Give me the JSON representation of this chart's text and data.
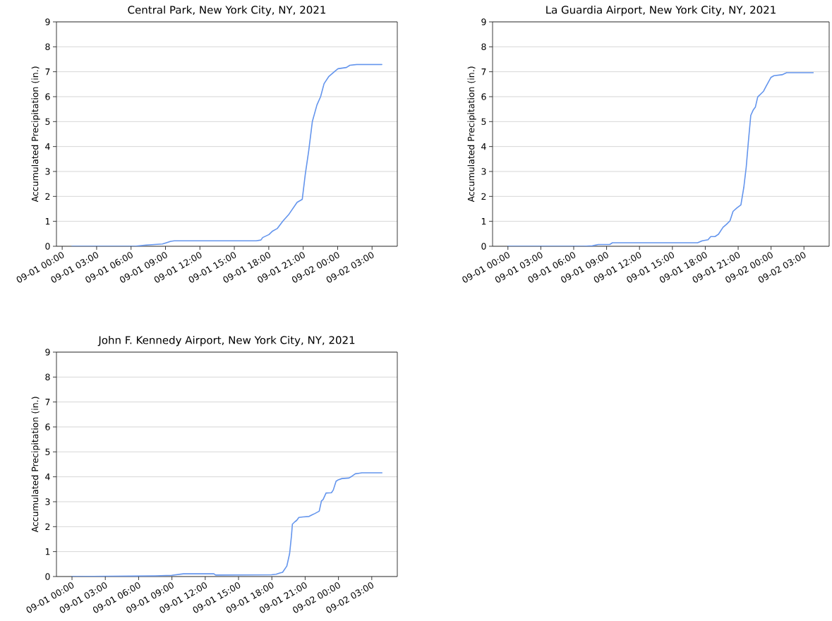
{
  "chart_data": [
    {
      "type": "line",
      "title": "Central Park, New York City, NY, 2021",
      "ylabel": "Accumulated Precipitation (in.)",
      "color": "#6495ed",
      "grid": "y",
      "x": [
        "2021-09-01T00:51",
        "2021-09-01T06:17",
        "2021-09-01T07:19",
        "2021-09-01T08:44",
        "2021-09-01T08:59",
        "2021-09-01T09:27",
        "2021-09-01T09:46",
        "2021-09-01T16:54",
        "2021-09-01T17:19",
        "2021-09-01T17:28",
        "2021-09-01T18:01",
        "2021-09-01T18:20",
        "2021-09-01T18:44",
        "2021-09-01T19:14",
        "2021-09-01T19:46",
        "2021-09-01T20:28",
        "2021-09-01T20:55",
        "2021-09-01T21:11",
        "2021-09-01T21:29",
        "2021-09-01T21:48",
        "2021-09-01T22:12",
        "2021-09-01T22:31",
        "2021-09-01T22:49",
        "2021-09-01T23:13",
        "2021-09-01T23:44",
        "2021-09-02T00:02",
        "2021-09-02T00:46",
        "2021-09-02T01:04",
        "2021-09-02T01:40",
        "2021-09-02T03:51"
      ],
      "values": [
        0,
        0,
        0.05,
        0.09,
        0.13,
        0.2,
        0.22,
        0.22,
        0.25,
        0.35,
        0.47,
        0.61,
        0.71,
        1.01,
        1.29,
        1.76,
        1.88,
        2.89,
        3.84,
        5.01,
        5.67,
        6.0,
        6.52,
        6.8,
        7.01,
        7.12,
        7.17,
        7.26,
        7.29,
        7.29
      ],
      "xlim": [
        "2021-08-31T23:30",
        "2021-09-02T05:12"
      ],
      "ylim": [
        0,
        9
      ],
      "xticks": [
        {
          "value": "2021-09-01T00:00",
          "label": "09-01 00:00"
        },
        {
          "value": "2021-09-01T03:00",
          "label": "09-01 03:00"
        },
        {
          "value": "2021-09-01T06:00",
          "label": "09-01 06:00"
        },
        {
          "value": "2021-09-01T09:00",
          "label": "09-01 09:00"
        },
        {
          "value": "2021-09-01T12:00",
          "label": "09-01 12:00"
        },
        {
          "value": "2021-09-01T15:00",
          "label": "09-01 15:00"
        },
        {
          "value": "2021-09-01T18:00",
          "label": "09-01 18:00"
        },
        {
          "value": "2021-09-01T21:00",
          "label": "09-01 21:00"
        },
        {
          "value": "2021-09-02T00:00",
          "label": "09-02 00:00"
        },
        {
          "value": "2021-09-02T03:00",
          "label": "09-02 03:00"
        }
      ],
      "yticks": [
        0,
        1,
        2,
        3,
        4,
        5,
        6,
        7,
        8,
        9
      ]
    },
    {
      "type": "line",
      "title": "La Guardia Airport, New York City, NY, 2021",
      "ylabel": "Accumulated Precipitation (in.)",
      "color": "#6495ed",
      "grid": "y",
      "x": [
        "2021-09-01T00:00",
        "2021-09-01T06:52",
        "2021-09-01T07:42",
        "2021-09-01T08:14",
        "2021-09-01T09:17",
        "2021-09-01T09:32",
        "2021-09-01T17:18",
        "2021-09-01T17:43",
        "2021-09-01T18:15",
        "2021-09-01T18:30",
        "2021-09-01T18:53",
        "2021-09-01T19:12",
        "2021-09-01T19:37",
        "2021-09-01T19:56",
        "2021-09-01T20:15",
        "2021-09-01T20:32",
        "2021-09-01T20:53",
        "2021-09-01T21:15",
        "2021-09-01T21:31",
        "2021-09-01T21:44",
        "2021-09-01T21:56",
        "2021-09-01T22:09",
        "2021-09-01T22:22",
        "2021-09-01T22:34",
        "2021-09-01T22:47",
        "2021-09-01T23:19",
        "2021-09-01T23:31",
        "2021-09-01T23:59",
        "2021-09-02T00:16",
        "2021-09-02T01:00",
        "2021-09-02T01:25",
        "2021-09-02T03:51"
      ],
      "values": [
        0,
        0,
        0.02,
        0.07,
        0.07,
        0.14,
        0.14,
        0.22,
        0.26,
        0.39,
        0.39,
        0.48,
        0.76,
        0.88,
        1.02,
        1.4,
        1.54,
        1.66,
        2.37,
        3.17,
        4.21,
        5.25,
        5.46,
        5.58,
        5.99,
        6.22,
        6.39,
        6.77,
        6.84,
        6.88,
        6.96,
        6.96
      ],
      "xlim": [
        "2021-08-31T22:36",
        "2021-09-02T05:18"
      ],
      "ylim": [
        0,
        9
      ],
      "xticks": [
        {
          "value": "2021-09-01T00:00",
          "label": "09-01 00:00"
        },
        {
          "value": "2021-09-01T03:00",
          "label": "09-01 03:00"
        },
        {
          "value": "2021-09-01T06:00",
          "label": "09-01 06:00"
        },
        {
          "value": "2021-09-01T09:00",
          "label": "09-01 09:00"
        },
        {
          "value": "2021-09-01T12:00",
          "label": "09-01 12:00"
        },
        {
          "value": "2021-09-01T15:00",
          "label": "09-01 15:00"
        },
        {
          "value": "2021-09-01T18:00",
          "label": "09-01 18:00"
        },
        {
          "value": "2021-09-01T21:00",
          "label": "09-01 21:00"
        },
        {
          "value": "2021-09-02T00:00",
          "label": "09-02 00:00"
        },
        {
          "value": "2021-09-02T03:00",
          "label": "09-02 03:00"
        }
      ],
      "yticks": [
        0,
        1,
        2,
        3,
        4,
        5,
        6,
        7,
        8,
        9
      ]
    },
    {
      "type": "line",
      "title": "John F. Kennedy Airport, New York City, NY, 2021",
      "ylabel": "Accumulated Precipitation (in.)",
      "color": "#6495ed",
      "grid": "y",
      "x": [
        "2021-09-01T00:00",
        "2021-09-01T07:30",
        "2021-09-01T08:59",
        "2021-09-01T10:02",
        "2021-09-01T12:47",
        "2021-09-01T12:56",
        "2021-09-01T17:58",
        "2021-09-01T18:23",
        "2021-09-01T18:43",
        "2021-09-01T18:58",
        "2021-09-01T19:21",
        "2021-09-01T19:36",
        "2021-09-01T19:46",
        "2021-09-01T19:51",
        "2021-09-01T20:05",
        "2021-09-01T20:14",
        "2021-09-01T20:26",
        "2021-09-01T20:49",
        "2021-09-01T21:21",
        "2021-09-01T21:34",
        "2021-09-01T21:53",
        "2021-09-01T22:16",
        "2021-09-01T22:28",
        "2021-09-01T22:37",
        "2021-09-01T22:53",
        "2021-09-01T23:22",
        "2021-09-01T23:32",
        "2021-09-01T23:47",
        "2021-09-01T23:59",
        "2021-09-02T00:19",
        "2021-09-02T00:57",
        "2021-09-02T01:10",
        "2021-09-02T01:31",
        "2021-09-02T02:07",
        "2021-09-02T03:55"
      ],
      "values": [
        0,
        0.03,
        0.05,
        0.11,
        0.11,
        0.06,
        0.07,
        0.09,
        0.14,
        0.17,
        0.42,
        0.92,
        1.63,
        2.1,
        2.2,
        2.25,
        2.37,
        2.39,
        2.41,
        2.46,
        2.53,
        2.62,
        3.03,
        3.09,
        3.35,
        3.36,
        3.47,
        3.82,
        3.88,
        3.93,
        3.95,
        4.01,
        4.12,
        4.16,
        4.16
      ],
      "xlim": [
        "2021-08-31T22:36",
        "2021-09-02T05:18"
      ],
      "ylim": [
        0,
        9
      ],
      "xticks": [
        {
          "value": "2021-09-01T00:00",
          "label": "09-01 00:00"
        },
        {
          "value": "2021-09-01T03:00",
          "label": "09-01 03:00"
        },
        {
          "value": "2021-09-01T06:00",
          "label": "09-01 06:00"
        },
        {
          "value": "2021-09-01T09:00",
          "label": "09-01 09:00"
        },
        {
          "value": "2021-09-01T12:00",
          "label": "09-01 12:00"
        },
        {
          "value": "2021-09-01T15:00",
          "label": "09-01 15:00"
        },
        {
          "value": "2021-09-01T18:00",
          "label": "09-01 18:00"
        },
        {
          "value": "2021-09-01T21:00",
          "label": "09-01 21:00"
        },
        {
          "value": "2021-09-02T00:00",
          "label": "09-02 00:00"
        },
        {
          "value": "2021-09-02T03:00",
          "label": "09-02 03:00"
        }
      ],
      "yticks": [
        0,
        1,
        2,
        3,
        4,
        5,
        6,
        7,
        8,
        9
      ]
    }
  ]
}
